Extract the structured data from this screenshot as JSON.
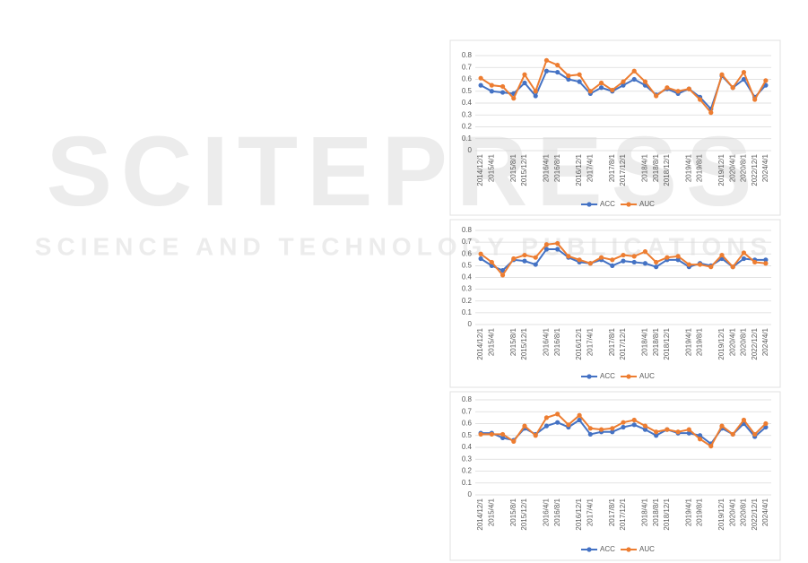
{
  "watermark": {
    "title": "SCITEPRESS",
    "subtitle": "SCIENCE AND TECHNOLOGY PUBLICATIONS"
  },
  "chart_data": [
    {
      "type": "line",
      "categories": [
        "2014/12/1",
        "2015/4/1",
        null,
        "2015/8/1",
        "2015/12/1",
        null,
        "2016/4/1",
        "2016/8/1",
        null,
        "2016/12/1",
        "2017/4/1",
        null,
        "2017/8/1",
        "2017/12/1",
        null,
        "2018/4/1",
        "2018/8/1",
        "2018/12/1",
        null,
        "2019/4/1",
        "2019/8/1",
        null,
        "2019/12/1",
        "2020/4/1",
        "2020/8/1",
        "2022/12/1",
        "2024/4/1"
      ],
      "series": [
        {
          "name": "ACC",
          "color": "#4472c4",
          "values": [
            0.55,
            0.5,
            0.49,
            0.48,
            0.57,
            0.46,
            0.67,
            0.66,
            0.6,
            0.58,
            0.48,
            0.53,
            0.5,
            0.55,
            0.6,
            0.55,
            0.47,
            0.52,
            0.48,
            0.52,
            0.45,
            0.35,
            0.63,
            0.53,
            0.6,
            0.45,
            0.55
          ]
        },
        {
          "name": "AUC",
          "color": "#ed7d31",
          "values": [
            0.61,
            0.55,
            0.54,
            0.44,
            0.64,
            0.5,
            0.76,
            0.72,
            0.63,
            0.64,
            0.5,
            0.57,
            0.51,
            0.58,
            0.67,
            0.58,
            0.46,
            0.53,
            0.5,
            0.52,
            0.43,
            0.32,
            0.64,
            0.53,
            0.66,
            0.43,
            0.59
          ]
        }
      ],
      "ylim": [
        0,
        0.8
      ],
      "yticks": [
        0,
        0.1,
        0.2,
        0.3,
        0.4,
        0.5,
        0.6,
        0.7,
        0.8
      ],
      "grid": true,
      "legend": "bottom"
    },
    {
      "type": "line",
      "categories": [
        "2014/12/1",
        "2015/4/1",
        null,
        "2015/8/1",
        "2015/12/1",
        null,
        "2016/4/1",
        "2016/8/1",
        null,
        "2016/12/1",
        "2017/4/1",
        null,
        "2017/8/1",
        "2017/12/1",
        null,
        "2018/4/1",
        "2018/8/1",
        "2018/12/1",
        null,
        "2019/4/1",
        "2019/8/1",
        null,
        "2019/12/1",
        "2020/4/1",
        "2020/8/1",
        "2022/12/1",
        "2024/4/1"
      ],
      "series": [
        {
          "name": "ACC",
          "color": "#4472c4",
          "values": [
            0.56,
            0.5,
            0.46,
            0.55,
            0.54,
            0.51,
            0.64,
            0.64,
            0.57,
            0.53,
            0.52,
            0.55,
            0.5,
            0.54,
            0.53,
            0.52,
            0.49,
            0.55,
            0.55,
            0.49,
            0.52,
            0.5,
            0.56,
            0.49,
            0.56,
            0.55,
            0.55
          ]
        },
        {
          "name": "AUC",
          "color": "#ed7d31",
          "values": [
            0.6,
            0.53,
            0.42,
            0.56,
            0.59,
            0.57,
            0.68,
            0.69,
            0.58,
            0.55,
            0.52,
            0.57,
            0.55,
            0.59,
            0.58,
            0.62,
            0.53,
            0.57,
            0.58,
            0.51,
            0.51,
            0.49,
            0.59,
            0.49,
            0.61,
            0.53,
            0.52
          ]
        }
      ],
      "ylim": [
        0,
        0.8
      ],
      "yticks": [
        0,
        0.1,
        0.2,
        0.3,
        0.4,
        0.5,
        0.6,
        0.7,
        0.8
      ],
      "grid": true,
      "legend": "bottom"
    },
    {
      "type": "line",
      "categories": [
        "2014/12/1",
        "2015/4/1",
        null,
        "2015/8/1",
        "2015/12/1",
        null,
        "2016/4/1",
        "2016/8/1",
        null,
        "2016/12/1",
        "2017/4/1",
        null,
        "2017/8/1",
        "2017/12/1",
        null,
        "2018/4/1",
        "2018/8/1",
        "2018/12/1",
        null,
        "2019/4/1",
        "2019/8/1",
        null,
        "2019/12/1",
        "2020/4/1",
        "2020/8/1",
        "2022/12/1",
        "2024/4/1"
      ],
      "series": [
        {
          "name": "ACC",
          "color": "#4472c4",
          "values": [
            0.52,
            0.52,
            0.48,
            0.46,
            0.56,
            0.51,
            0.58,
            0.61,
            0.57,
            0.63,
            0.51,
            0.53,
            0.53,
            0.57,
            0.59,
            0.55,
            0.5,
            0.55,
            0.52,
            0.52,
            0.5,
            0.43,
            0.56,
            0.51,
            0.6,
            0.49,
            0.57
          ]
        },
        {
          "name": "AUC",
          "color": "#ed7d31",
          "values": [
            0.51,
            0.51,
            0.51,
            0.45,
            0.58,
            0.5,
            0.65,
            0.68,
            0.59,
            0.67,
            0.56,
            0.55,
            0.56,
            0.61,
            0.63,
            0.58,
            0.53,
            0.55,
            0.53,
            0.55,
            0.47,
            0.41,
            0.58,
            0.51,
            0.63,
            0.51,
            0.6
          ]
        }
      ],
      "ylim": [
        0,
        0.8
      ],
      "yticks": [
        0,
        0.1,
        0.2,
        0.3,
        0.4,
        0.5,
        0.6,
        0.7,
        0.8
      ],
      "grid": true,
      "legend": "bottom"
    }
  ]
}
